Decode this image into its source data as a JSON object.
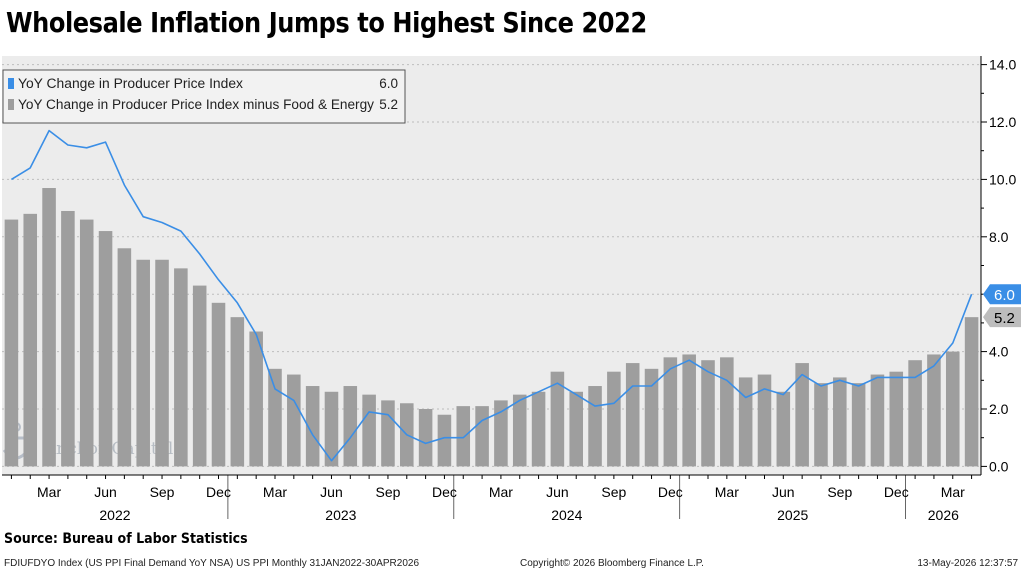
{
  "title": "Wholesale Inflation Jumps to Highest Since 2022",
  "source": "Source: Bureau of Labor Statistics",
  "footer": {
    "left": "FDIUFDYO Index (US PPI Final Demand YoY NSA) US PPI Monthly 31JAN2022-30APR2026",
    "center": "Copyright© 2026 Bloomberg Finance L.P.",
    "right": "13-May-2026 12:37:57"
  },
  "watermark": "Anchor Capital",
  "colors": {
    "line": "#3a8ee6",
    "bar": "#9e9e9e",
    "plot_bg": "#ececec",
    "legend_bg": "#f2f2f2"
  },
  "chart_data": {
    "type": "bar",
    "title": "Wholesale Inflation Jumps to Highest Since 2022",
    "x": [
      "2022-01",
      "2022-02",
      "2022-03",
      "2022-04",
      "2022-05",
      "2022-06",
      "2022-07",
      "2022-08",
      "2022-09",
      "2022-10",
      "2022-11",
      "2022-12",
      "2023-01",
      "2023-02",
      "2023-03",
      "2023-04",
      "2023-05",
      "2023-06",
      "2023-07",
      "2023-08",
      "2023-09",
      "2023-10",
      "2023-11",
      "2023-12",
      "2024-01",
      "2024-02",
      "2024-03",
      "2024-04",
      "2024-05",
      "2024-06",
      "2024-07",
      "2024-08",
      "2024-09",
      "2024-10",
      "2024-11",
      "2024-12",
      "2025-01",
      "2025-02",
      "2025-03",
      "2025-04",
      "2025-05",
      "2025-06",
      "2025-07",
      "2025-08",
      "2025-09",
      "2025-10",
      "2025-11",
      "2025-12",
      "2026-01",
      "2026-02",
      "2026-03",
      "2026-04"
    ],
    "series": [
      {
        "name": "YoY Change in Producer Price Index",
        "type": "line",
        "last": "6.0",
        "values": [
          10.0,
          10.4,
          11.7,
          11.2,
          11.1,
          11.3,
          9.8,
          8.7,
          8.5,
          8.2,
          7.4,
          6.5,
          5.7,
          4.6,
          2.7,
          2.3,
          1.1,
          0.2,
          1.0,
          1.9,
          1.8,
          1.1,
          0.8,
          1.0,
          1.0,
          1.6,
          1.9,
          2.3,
          2.6,
          2.9,
          2.5,
          2.1,
          2.2,
          2.8,
          2.8,
          3.4,
          3.7,
          3.3,
          3.0,
          2.4,
          2.7,
          2.5,
          3.2,
          2.8,
          3.0,
          2.8,
          3.1,
          3.1,
          3.1,
          3.5,
          4.3,
          6.0
        ]
      },
      {
        "name": "YoY Change in Producer Price Index minus Food & Energy",
        "type": "bar",
        "last": "5.2",
        "values": [
          8.6,
          8.8,
          9.7,
          8.9,
          8.6,
          8.2,
          7.6,
          7.2,
          7.2,
          6.9,
          6.3,
          5.7,
          5.2,
          4.7,
          3.4,
          3.2,
          2.8,
          2.6,
          2.8,
          2.5,
          2.3,
          2.2,
          2.0,
          1.8,
          2.1,
          2.1,
          2.3,
          2.5,
          2.6,
          3.3,
          2.6,
          2.8,
          3.3,
          3.6,
          3.4,
          3.8,
          3.9,
          3.7,
          3.8,
          3.1,
          3.2,
          2.6,
          3.6,
          2.9,
          3.1,
          2.9,
          3.2,
          3.3,
          3.7,
          3.9,
          4.0,
          5.2
        ]
      }
    ],
    "y_axis": {
      "ticks": [
        "0.0",
        "2.0",
        "4.0",
        "6.0",
        "8.0",
        "10.0",
        "12.0",
        "14.0"
      ],
      "ylim": [
        -0.3,
        14.3
      ],
      "position": "right"
    },
    "x_axis": {
      "month_labels": [
        {
          "label": "Mar",
          "index": 2
        },
        {
          "label": "Jun",
          "index": 5
        },
        {
          "label": "Sep",
          "index": 8
        },
        {
          "label": "Dec",
          "index": 11
        },
        {
          "label": "Mar",
          "index": 14
        },
        {
          "label": "Jun",
          "index": 17
        },
        {
          "label": "Sep",
          "index": 20
        },
        {
          "label": "Dec",
          "index": 23
        },
        {
          "label": "Mar",
          "index": 26
        },
        {
          "label": "Jun",
          "index": 29
        },
        {
          "label": "Sep",
          "index": 32
        },
        {
          "label": "Dec",
          "index": 35
        },
        {
          "label": "Mar",
          "index": 38
        },
        {
          "label": "Jun",
          "index": 41
        },
        {
          "label": "Sep",
          "index": 44
        },
        {
          "label": "Dec",
          "index": 47
        },
        {
          "label": "Mar",
          "index": 50
        }
      ],
      "year_labels": [
        {
          "label": "2022",
          "from": 0,
          "to": 11
        },
        {
          "label": "2023",
          "from": 12,
          "to": 23
        },
        {
          "label": "2024",
          "from": 24,
          "to": 35
        },
        {
          "label": "2025",
          "from": 36,
          "to": 47
        },
        {
          "label": "2026",
          "from": 48,
          "to": 51
        }
      ]
    },
    "legend_placement": "top-left",
    "grid": "horizontal dashed"
  }
}
